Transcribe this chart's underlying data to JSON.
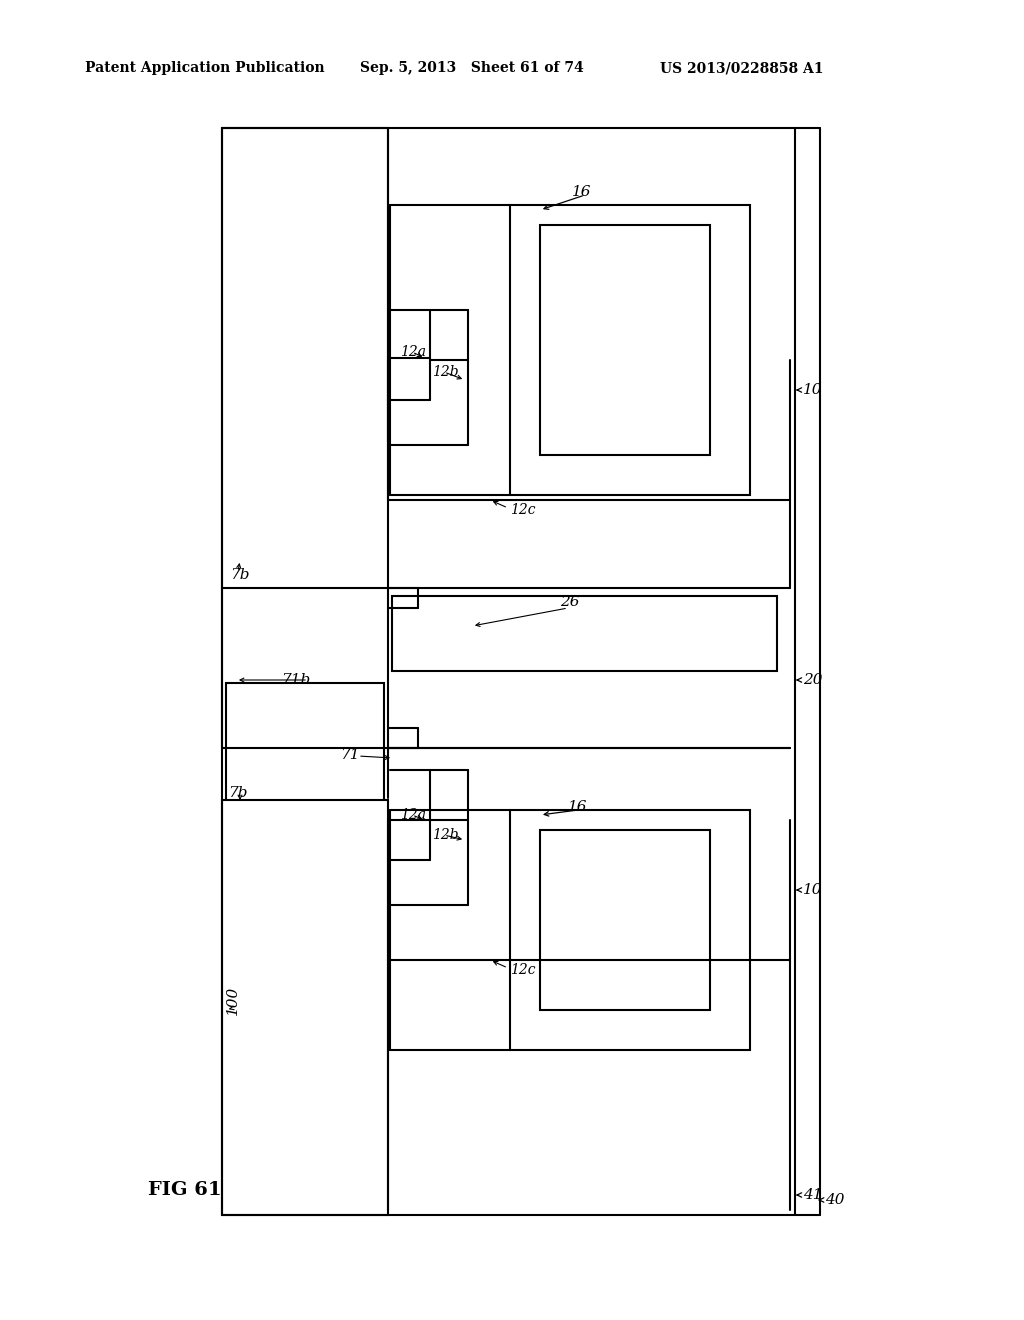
{
  "header_left": "Patent Application Publication",
  "header_mid": "Sep. 5, 2013   Sheet 61 of 74",
  "header_right": "US 2013/0228858 A1",
  "fig_label": "FIG 61",
  "bg_color": "#ffffff",
  "lc": "#000000",
  "lw": 1.5,
  "labels": {
    "16_top": "16",
    "12a_top": "12a",
    "12b_top": "12b",
    "12c_top": "12c",
    "10_top": "10",
    "7b_top": "7b",
    "26": "26",
    "71b": "71b",
    "20": "20",
    "71": "71",
    "7b_bot": "7b",
    "16_bot": "16",
    "12a_bot": "12a",
    "12b_bot": "12b",
    "12c_bot": "12c",
    "10_bot": "10",
    "100": "100",
    "40": "40",
    "41": "41"
  }
}
